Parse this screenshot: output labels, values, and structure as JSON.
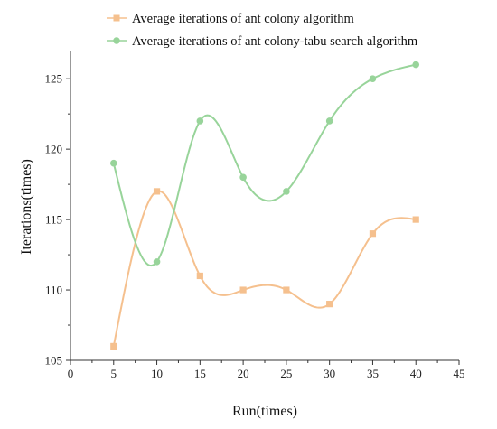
{
  "colors": {
    "series_aco": "#f5c08e",
    "series_aco_tabu": "#98d49a",
    "axis": "#333333"
  },
  "chart_data": {
    "type": "line",
    "xlabel": "Run(times)",
    "ylabel": "Iterations(times)",
    "xlim": [
      0,
      45
    ],
    "ylim": [
      105,
      127
    ],
    "xticks": [
      0,
      5,
      10,
      15,
      20,
      25,
      30,
      35,
      40,
      45
    ],
    "yticks": [
      105,
      110,
      115,
      120,
      125
    ],
    "grid": false,
    "legend_position": "top",
    "smoothed": true,
    "x": [
      5,
      10,
      15,
      20,
      25,
      30,
      35,
      40
    ],
    "series": [
      {
        "name": "Average iterations of ant colony algorithm",
        "marker": "square",
        "color": "#f5c08e",
        "values": [
          106,
          117,
          111,
          110,
          110,
          109,
          114,
          115
        ]
      },
      {
        "name": "Average iterations of ant colony-tabu search algorithm",
        "marker": "circle",
        "color": "#98d49a",
        "values": [
          119,
          112,
          122,
          118,
          117,
          122,
          125,
          126
        ]
      }
    ]
  }
}
